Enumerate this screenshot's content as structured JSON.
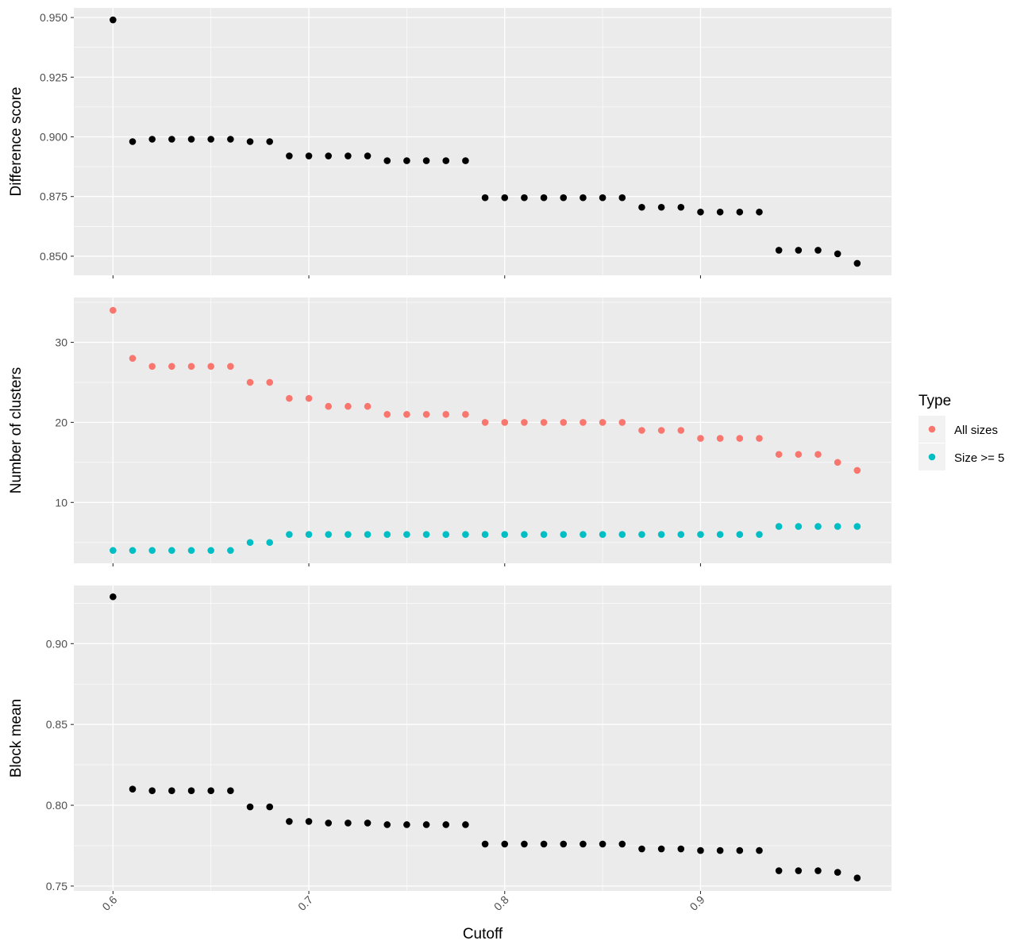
{
  "chart_data": {
    "type": "scatter",
    "x_label": "Cutoff",
    "x_ticks": [
      "0.6",
      "0.7",
      "0.8",
      "0.9"
    ],
    "x_tick_values": [
      0.6,
      0.7,
      0.8,
      0.9
    ],
    "x_range": [
      0.58,
      0.9975
    ],
    "x": [
      0.6,
      0.61,
      0.62,
      0.63,
      0.64,
      0.65,
      0.66,
      0.67,
      0.68,
      0.69,
      0.7,
      0.71,
      0.72,
      0.73,
      0.74,
      0.75,
      0.76,
      0.77,
      0.78,
      0.79,
      0.8,
      0.81,
      0.82,
      0.83,
      0.84,
      0.85,
      0.86,
      0.87,
      0.88,
      0.89,
      0.9,
      0.91,
      0.92,
      0.93,
      0.94,
      0.95,
      0.96,
      0.97,
      0.98
    ],
    "legend": {
      "title": "Type",
      "items": [
        {
          "label": "All sizes",
          "color": "#f8766d"
        },
        {
          "label": "Size >= 5",
          "color": "#00bfc4"
        }
      ]
    },
    "panels": [
      {
        "y_label": "Difference score",
        "y_ticks": [
          "0.850",
          "0.875",
          "0.900",
          "0.925",
          "0.950"
        ],
        "y_tick_values": [
          0.85,
          0.875,
          0.9,
          0.925,
          0.95
        ],
        "y_range": [
          0.842,
          0.954
        ],
        "series": [
          {
            "color": "#000000",
            "values": [
              0.949,
              0.898,
              0.899,
              0.899,
              0.899,
              0.899,
              0.899,
              0.898,
              0.898,
              0.892,
              0.892,
              0.892,
              0.892,
              0.892,
              0.89,
              0.89,
              0.89,
              0.89,
              0.89,
              0.8745,
              0.8745,
              0.8745,
              0.8745,
              0.8745,
              0.8745,
              0.8745,
              0.8745,
              0.8705,
              0.8705,
              0.8705,
              0.8685,
              0.8685,
              0.8685,
              0.8685,
              0.8525,
              0.8525,
              0.8525,
              0.851,
              0.847
            ]
          }
        ]
      },
      {
        "y_label": "Number of clusters",
        "y_ticks": [
          "10",
          "20",
          "30"
        ],
        "y_tick_values": [
          10,
          20,
          30
        ],
        "y_range": [
          2.4,
          35.6
        ],
        "series": [
          {
            "name": "All sizes",
            "color": "#f8766d",
            "values": [
              34,
              28,
              27,
              27,
              27,
              27,
              27,
              25,
              25,
              23,
              23,
              22,
              22,
              22,
              21,
              21,
              21,
              21,
              21,
              20,
              20,
              20,
              20,
              20,
              20,
              20,
              20,
              19,
              19,
              19,
              18,
              18,
              18,
              18,
              16,
              16,
              16,
              15,
              14
            ]
          },
          {
            "name": "Size >= 5",
            "color": "#00bfc4",
            "values": [
              4,
              4,
              4,
              4,
              4,
              4,
              4,
              5,
              5,
              6,
              6,
              6,
              6,
              6,
              6,
              6,
              6,
              6,
              6,
              6,
              6,
              6,
              6,
              6,
              6,
              6,
              6,
              6,
              6,
              6,
              6,
              6,
              6,
              6,
              7,
              7,
              7,
              7,
              7
            ]
          }
        ]
      },
      {
        "y_label": "Block mean",
        "y_ticks": [
          "0.75",
          "0.80",
          "0.85",
          "0.90"
        ],
        "y_tick_values": [
          0.75,
          0.8,
          0.85,
          0.9
        ],
        "y_range": [
          0.747,
          0.936
        ],
        "series": [
          {
            "color": "#000000",
            "values": [
              0.929,
              0.81,
              0.809,
              0.809,
              0.809,
              0.809,
              0.809,
              0.799,
              0.799,
              0.79,
              0.79,
              0.789,
              0.789,
              0.789,
              0.788,
              0.788,
              0.788,
              0.788,
              0.788,
              0.776,
              0.776,
              0.776,
              0.776,
              0.776,
              0.776,
              0.776,
              0.776,
              0.773,
              0.773,
              0.773,
              0.772,
              0.772,
              0.772,
              0.772,
              0.7595,
              0.7595,
              0.7595,
              0.7585,
              0.755
            ]
          }
        ]
      }
    ],
    "grid": true
  }
}
